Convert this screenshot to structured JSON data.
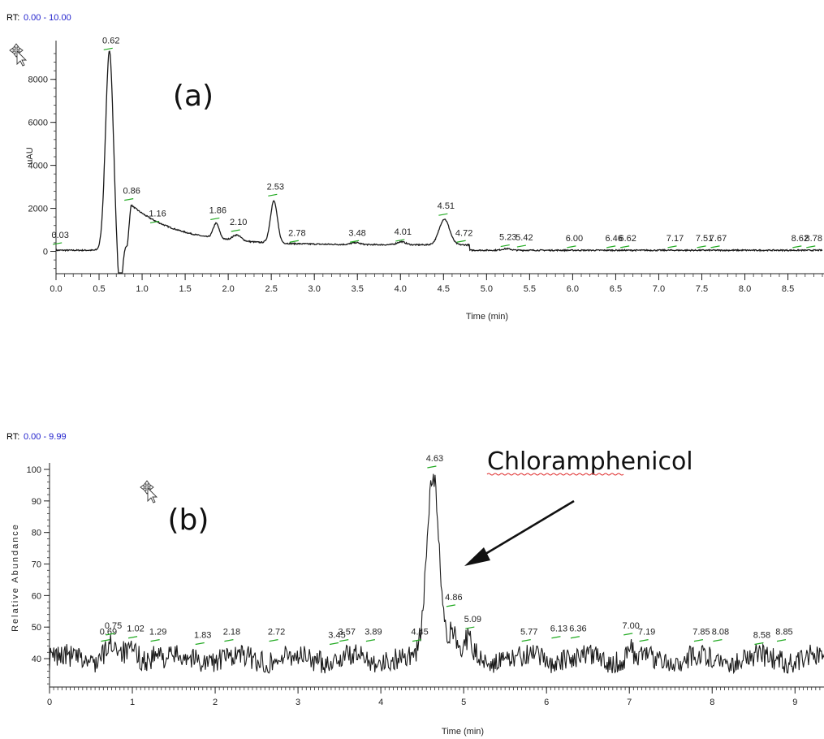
{
  "colors": {
    "trace": "#1a1a1a",
    "rt_value": "#1f1fcc",
    "marker": "#22aa22",
    "spellcheck": "#e03030"
  },
  "chart_data": [
    {
      "type": "line",
      "panel_label": "(a)",
      "rt_label": "RT:",
      "rt_range": "0.00 - 10.00",
      "xlabel": "Time (min)",
      "ylabel": "uAU",
      "xlim": [
        0,
        8.9
      ],
      "ylim": [
        -1000,
        9500
      ],
      "x_ticks": [
        "0.0",
        "0.5",
        "1.0",
        "1.5",
        "2.0",
        "2.5",
        "3.0",
        "3.5",
        "4.0",
        "4.5",
        "5.0",
        "5.5",
        "6.0",
        "6.5",
        "7.0",
        "7.5",
        "8.0",
        "8.5"
      ],
      "y_ticks": [
        "0",
        "2000",
        "4000",
        "6000",
        "8000"
      ],
      "peaks": [
        {
          "x": 0.03,
          "y": 250,
          "label": "0.03"
        },
        {
          "x": 0.62,
          "y": 9300,
          "label": "0.62"
        },
        {
          "x": 0.86,
          "y": 2300,
          "label": "0.86"
        },
        {
          "x": 1.16,
          "y": 1250,
          "label": "1.16"
        },
        {
          "x": 1.86,
          "y": 1400,
          "label": "1.86"
        },
        {
          "x": 2.1,
          "y": 850,
          "label": "2.10"
        },
        {
          "x": 2.53,
          "y": 2500,
          "label": "2.53"
        },
        {
          "x": 2.78,
          "y": 350,
          "label": "2.78"
        },
        {
          "x": 3.48,
          "y": 350,
          "label": "3.48"
        },
        {
          "x": 4.01,
          "y": 400,
          "label": "4.01"
        },
        {
          "x": 4.51,
          "y": 1600,
          "label": "4.51"
        },
        {
          "x": 4.72,
          "y": 350,
          "label": "4.72"
        },
        {
          "x": 5.23,
          "y": 150,
          "label": "5.23"
        },
        {
          "x": 5.42,
          "y": 130,
          "label": "5.42"
        },
        {
          "x": 6.0,
          "y": 100,
          "label": "6.00"
        },
        {
          "x": 6.46,
          "y": 100,
          "label": "6.46"
        },
        {
          "x": 6.62,
          "y": 100,
          "label": "6.62"
        },
        {
          "x": 7.17,
          "y": 100,
          "label": "7.17"
        },
        {
          "x": 7.51,
          "y": 100,
          "label": "7.51"
        },
        {
          "x": 7.67,
          "y": 100,
          "label": "7.67"
        },
        {
          "x": 8.62,
          "y": 100,
          "label": "8.62"
        },
        {
          "x": 8.78,
          "y": 100,
          "label": "8.78"
        }
      ]
    },
    {
      "type": "line",
      "panel_label": "(b)",
      "rt_label": "RT:",
      "rt_range": "0.00 - 9.99",
      "xlabel": "Time (min)",
      "ylabel": "Relative Abundance",
      "annotation": "Chloramphenicol",
      "xlim": [
        0,
        9.35
      ],
      "ylim": [
        31,
        100
      ],
      "x_ticks": [
        "0",
        "1",
        "2",
        "3",
        "4",
        "5",
        "6",
        "7",
        "8",
        "9"
      ],
      "y_ticks": [
        "40",
        "50",
        "60",
        "70",
        "80",
        "90",
        "100"
      ],
      "baseline": 40,
      "peaks": [
        {
          "x": 0.69,
          "y": 45,
          "label": "0.69"
        },
        {
          "x": 0.75,
          "y": 47,
          "label": "0.75"
        },
        {
          "x": 1.02,
          "y": 46,
          "label": "1.02"
        },
        {
          "x": 1.29,
          "y": 45,
          "label": "1.29"
        },
        {
          "x": 1.83,
          "y": 44,
          "label": "1.83"
        },
        {
          "x": 2.18,
          "y": 45,
          "label": "2.18"
        },
        {
          "x": 2.72,
          "y": 45,
          "label": "2.72"
        },
        {
          "x": 3.45,
          "y": 44,
          "label": "3.45"
        },
        {
          "x": 3.57,
          "y": 45,
          "label": "3.57"
        },
        {
          "x": 3.89,
          "y": 45,
          "label": "3.89"
        },
        {
          "x": 4.45,
          "y": 45,
          "label": "4.45"
        },
        {
          "x": 4.63,
          "y": 100,
          "label": "4.63"
        },
        {
          "x": 4.86,
          "y": 56,
          "label": "4.86"
        },
        {
          "x": 5.09,
          "y": 49,
          "label": "5.09"
        },
        {
          "x": 5.77,
          "y": 45,
          "label": "5.77"
        },
        {
          "x": 6.13,
          "y": 46,
          "label": "6.13"
        },
        {
          "x": 6.36,
          "y": 46,
          "label": "6.36"
        },
        {
          "x": 7.0,
          "y": 47,
          "label": "7.00"
        },
        {
          "x": 7.19,
          "y": 45,
          "label": "7.19"
        },
        {
          "x": 7.85,
          "y": 45,
          "label": "7.85"
        },
        {
          "x": 8.08,
          "y": 45,
          "label": "8.08"
        },
        {
          "x": 8.58,
          "y": 44,
          "label": "8.58"
        },
        {
          "x": 8.85,
          "y": 45,
          "label": "8.85"
        }
      ]
    }
  ]
}
